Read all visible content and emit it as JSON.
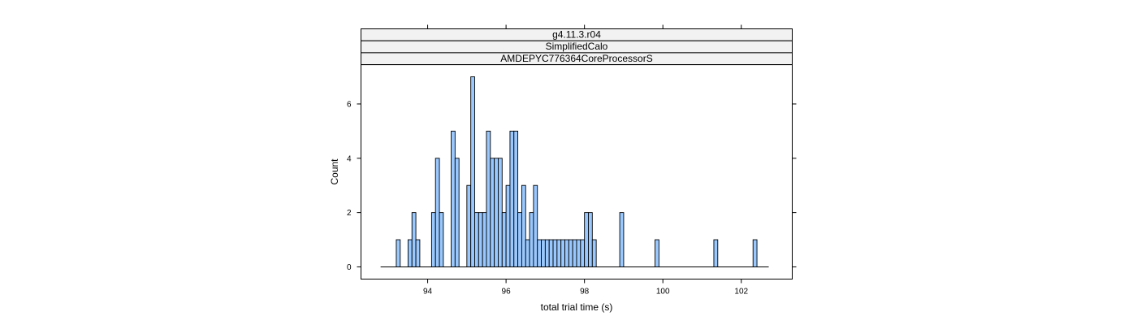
{
  "chart_data": {
    "type": "bar",
    "title": "",
    "xlabel": "total trial time (s)",
    "ylabel": "Count",
    "strips": [
      "g4.11.3.r04",
      "SimplifiedCalo",
      "AMDEPYC776364CoreProcessorS"
    ],
    "xlim": [
      92.3,
      103.3
    ],
    "ylim": [
      -0.45,
      7.45
    ],
    "x_ticks": [
      94,
      96,
      98,
      100,
      102
    ],
    "y_ticks": [
      0,
      2,
      4,
      6
    ],
    "bin_width": 0.1,
    "bin_start": 92.8,
    "values": [
      0,
      0,
      0,
      0,
      1,
      0,
      0,
      1,
      2,
      1,
      0,
      0,
      0,
      2,
      4,
      2,
      0,
      0,
      5,
      4,
      0,
      0,
      3,
      7,
      2,
      2,
      2,
      5,
      4,
      4,
      4,
      2,
      3,
      5,
      5,
      2,
      3,
      1,
      2,
      3,
      1,
      1,
      1,
      1,
      1,
      1,
      1,
      1,
      1,
      1,
      1,
      1,
      2,
      2,
      1,
      0,
      0,
      0,
      0,
      0,
      0,
      2,
      0,
      0,
      0,
      0,
      0,
      0,
      0,
      0,
      1,
      0,
      0,
      0,
      0,
      0,
      0,
      0,
      0,
      0,
      0,
      0,
      0,
      0,
      0,
      1,
      0,
      0,
      0,
      0,
      0,
      0,
      0,
      0,
      0,
      1,
      0,
      0,
      0
    ],
    "colors": {
      "bar_fill": "#99c8ff",
      "bar_stroke": "#000000",
      "strip_fill": "#f2f2f2",
      "frame": "#000000"
    },
    "grid": false,
    "legend": "none"
  }
}
